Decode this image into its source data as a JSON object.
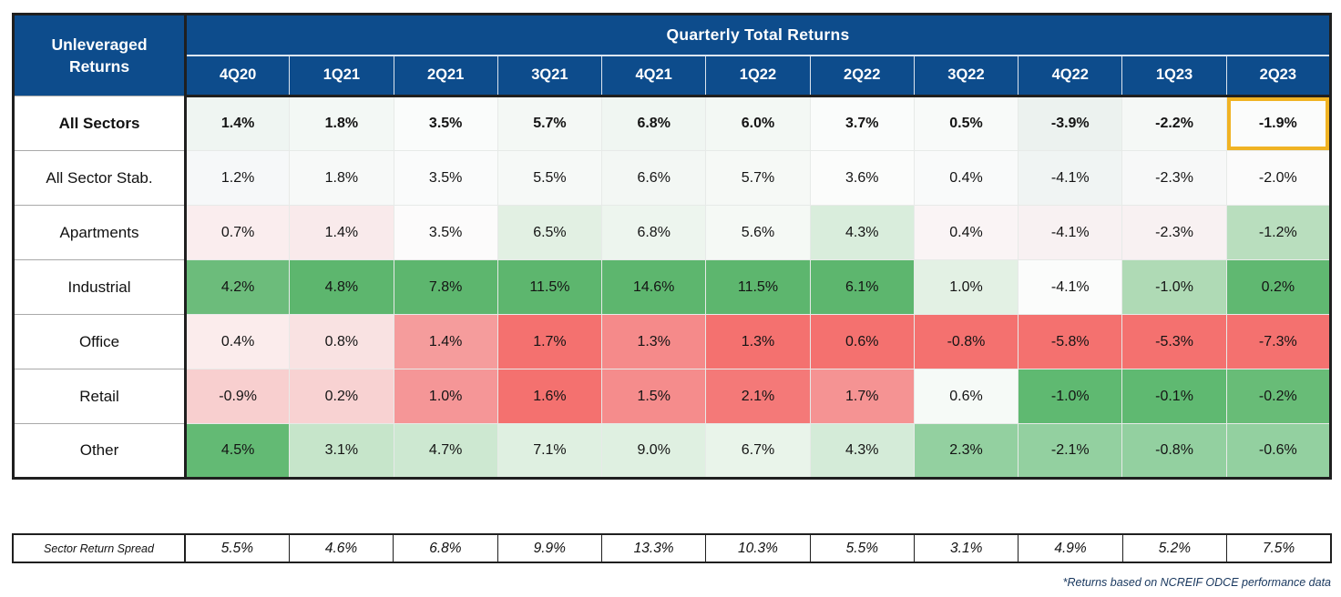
{
  "colors": {
    "header_bg": "#0D4C8C",
    "outer_border": "#1f1f1f",
    "highlight_border": "#F0B323",
    "footnote_text": "#17365D"
  },
  "chart_data": {
    "type": "heatmap",
    "title": "Quarterly Total Returns",
    "row_header_title": "Unleveraged Returns",
    "columns": [
      "4Q20",
      "1Q21",
      "2Q21",
      "3Q21",
      "4Q21",
      "1Q22",
      "2Q22",
      "3Q22",
      "4Q22",
      "1Q23",
      "2Q23"
    ],
    "rows": [
      {
        "label": "All Sectors",
        "bold": true,
        "values": [
          "1.4%",
          "1.8%",
          "3.5%",
          "5.7%",
          "6.8%",
          "6.0%",
          "3.7%",
          "0.5%",
          "-3.9%",
          "-2.2%",
          "-1.9%"
        ],
        "colors": [
          "#EFF5F2",
          "#F3F8F5",
          "#FAFCFB",
          "#F4F8F5",
          "#F0F6F2",
          "#F3F8F4",
          "#FAFCFB",
          "#F8FAF9",
          "#ECF2EF",
          "#F5F8F6",
          "#FBFCFB"
        ]
      },
      {
        "label": "All Sector Stab.",
        "bold": false,
        "values": [
          "1.2%",
          "1.8%",
          "3.5%",
          "5.5%",
          "6.6%",
          "5.7%",
          "3.6%",
          "0.4%",
          "-4.1%",
          "-2.3%",
          "-2.0%"
        ],
        "colors": [
          "#F6F8F9",
          "#F7F9F8",
          "#FAFBFB",
          "#F6F9F7",
          "#F3F7F4",
          "#F6F9F6",
          "#FBFCFB",
          "#F9FAFA",
          "#F0F4F3",
          "#F7F8F8",
          "#FBFBFB"
        ]
      },
      {
        "label": "Apartments",
        "bold": false,
        "values": [
          "0.7%",
          "1.4%",
          "3.5%",
          "6.5%",
          "6.8%",
          "5.6%",
          "4.3%",
          "0.4%",
          "-4.1%",
          "-2.3%",
          "-1.2%"
        ],
        "colors": [
          "#FAEDEE",
          "#F9EAEB",
          "#FCFBFB",
          "#E2F0E3",
          "#EDF5EE",
          "#F5F9F5",
          "#D9EDDC",
          "#FAF4F5",
          "#F8F1F2",
          "#F8F1F2",
          "#B9DEBE"
        ]
      },
      {
        "label": "Industrial",
        "bold": false,
        "values": [
          "4.2%",
          "4.8%",
          "7.8%",
          "11.5%",
          "14.6%",
          "11.5%",
          "6.1%",
          "1.0%",
          "-4.1%",
          "-1.0%",
          "0.2%"
        ],
        "colors": [
          "#6CBC7B",
          "#5DB66E",
          "#5DB66E",
          "#5DB66E",
          "#5DB66E",
          "#5DB66E",
          "#5DB66E",
          "#E3F1E4",
          "#FBFCFB",
          "#AFDAB5",
          "#60B871"
        ]
      },
      {
        "label": "Office",
        "bold": false,
        "values": [
          "0.4%",
          "0.8%",
          "1.4%",
          "1.7%",
          "1.3%",
          "1.3%",
          "0.6%",
          "-0.8%",
          "-5.8%",
          "-5.3%",
          "-7.3%"
        ],
        "colors": [
          "#FBECEC",
          "#F9E2E2",
          "#F59C9C",
          "#F4716F",
          "#F58A8A",
          "#F4716F",
          "#F4716F",
          "#F4716F",
          "#F4716F",
          "#F4716F",
          "#F4716F"
        ]
      },
      {
        "label": "Retail",
        "bold": false,
        "values": [
          "-0.9%",
          "0.2%",
          "1.0%",
          "1.6%",
          "1.5%",
          "2.1%",
          "1.7%",
          "0.6%",
          "-1.0%",
          "-0.1%",
          "-0.2%"
        ],
        "colors": [
          "#F8CFCF",
          "#F8D2D2",
          "#F59697",
          "#F4716F",
          "#F58C8C",
          "#F47978",
          "#F59393",
          "#F6FAF7",
          "#5FB971",
          "#5FB971",
          "#68BC77"
        ]
      },
      {
        "label": "Other",
        "bold": false,
        "values": [
          "4.5%",
          "3.1%",
          "4.7%",
          "7.1%",
          "9.0%",
          "6.7%",
          "4.3%",
          "2.3%",
          "-2.1%",
          "-0.8%",
          "-0.6%"
        ],
        "colors": [
          "#63BA74",
          "#C6E5CA",
          "#CDE8D1",
          "#DFF0E1",
          "#DFF0E1",
          "#E9F4EA",
          "#D4EBD8",
          "#93D0A0",
          "#93D0A0",
          "#93D0A0",
          "#93D0A0"
        ]
      }
    ],
    "spread_row": {
      "label": "Sector Return Spread",
      "values": [
        "5.5%",
        "4.6%",
        "6.8%",
        "9.9%",
        "13.3%",
        "10.3%",
        "5.5%",
        "3.1%",
        "4.9%",
        "5.2%",
        "7.5%"
      ]
    },
    "highlight": {
      "row": "All Sectors",
      "column": "2Q23",
      "color": "#F0B323"
    },
    "footnote": "*Returns based on NCREIF ODCE performance data"
  }
}
